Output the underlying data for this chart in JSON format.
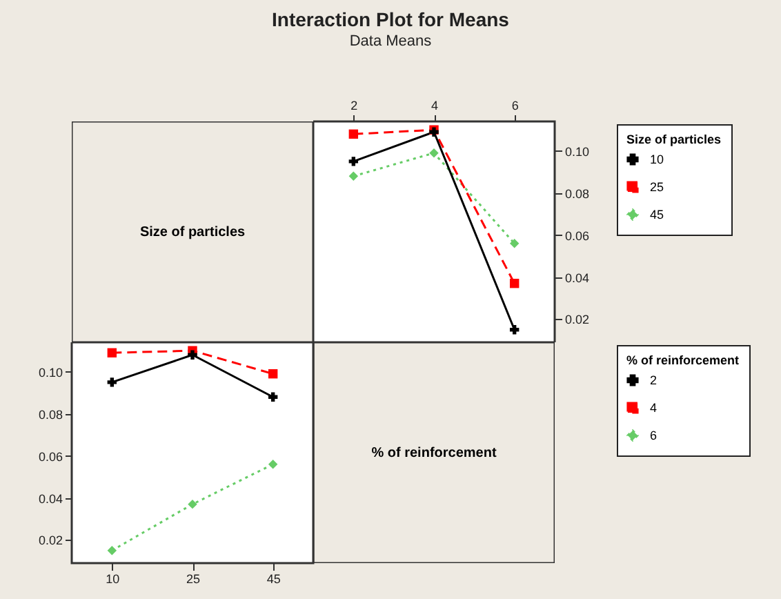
{
  "chart_data": [
    {
      "type": "other",
      "title": "Interaction Plot for Means",
      "subtitle": "Data Means",
      "annotations": [
        "Size of particles"
      ]
    },
    {
      "type": "line",
      "categories": [
        "2",
        "4",
        "6"
      ],
      "ylim": [
        0.009,
        0.114
      ],
      "yticks": [
        0.02,
        0.04,
        0.06,
        0.08,
        {
          "value": 0.1,
          "label": "0.10"
        }
      ],
      "legend": "right",
      "legend_title": "Size of particles",
      "series": [
        {
          "name": "10",
          "color": "#000000",
          "marker": "cross",
          "line_style": "solid",
          "values": [
            0.095,
            0.109,
            0.015
          ]
        },
        {
          "name": "25",
          "color": "#ff0000",
          "marker": "square",
          "line_style": "dashed",
          "values": [
            0.108,
            0.11,
            0.037
          ]
        },
        {
          "name": "45",
          "color": "#66cc66",
          "marker": "diamond",
          "line_style": "dotted",
          "values": [
            0.088,
            0.099,
            0.056
          ]
        }
      ]
    },
    {
      "type": "line",
      "categories": [
        "10",
        "25",
        "45"
      ],
      "ylim": [
        0.009,
        0.114
      ],
      "yticks": [
        0.02,
        0.04,
        0.06,
        0.08,
        {
          "value": 0.1,
          "label": "0.10"
        }
      ],
      "legend": "right",
      "legend_title": "% of reinforcement",
      "series": [
        {
          "name": "2",
          "color": "#000000",
          "marker": "cross",
          "line_style": "solid",
          "values": [
            0.095,
            0.108,
            0.088
          ]
        },
        {
          "name": "4",
          "color": "#ff0000",
          "marker": "square",
          "line_style": "dashed",
          "values": [
            0.109,
            0.11,
            0.099
          ]
        },
        {
          "name": "6",
          "color": "#66cc66",
          "marker": "diamond",
          "line_style": "dotted",
          "values": [
            0.015,
            0.037,
            0.056
          ]
        }
      ]
    },
    {
      "type": "other",
      "annotations": [
        "% of reinforcement"
      ]
    }
  ]
}
